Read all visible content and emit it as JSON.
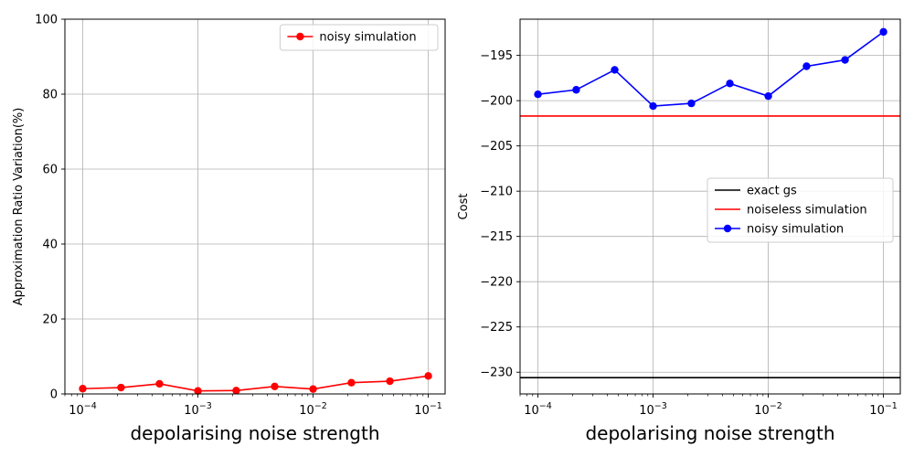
{
  "chart_data": [
    {
      "type": "line",
      "xscale": "log",
      "xlim": [
        7e-05,
        0.14
      ],
      "ylim": [
        0,
        100
      ],
      "xticks": [
        {
          "value": 0.0001,
          "base": "10",
          "exp": "−4"
        },
        {
          "value": 0.001,
          "base": "10",
          "exp": "−3"
        },
        {
          "value": 0.01,
          "base": "10",
          "exp": "−2"
        },
        {
          "value": 0.1,
          "base": "10",
          "exp": "−1"
        }
      ],
      "yticks": [
        0,
        20,
        40,
        60,
        80,
        100
      ],
      "xlabel": "depolarising noise strength",
      "ylabel": "Approximation Ratio Variation(%)",
      "grid": true,
      "legend_position": "top-right",
      "series": [
        {
          "name": "noisy simulation",
          "color": "#ff0000",
          "marker": "circle",
          "x": [
            0.0001,
            0.000215,
            0.000464,
            0.001,
            0.00215,
            0.00464,
            0.01,
            0.0215,
            0.0464,
            0.1
          ],
          "y": [
            1.4,
            1.7,
            2.7,
            0.8,
            0.9,
            2.0,
            1.3,
            3.0,
            3.4,
            4.8
          ]
        }
      ]
    },
    {
      "type": "line",
      "xscale": "log",
      "xlim": [
        7e-05,
        0.14
      ],
      "ylim": [
        -232.4,
        -191.0
      ],
      "xticks": [
        {
          "value": 0.0001,
          "base": "10",
          "exp": "−4"
        },
        {
          "value": 0.001,
          "base": "10",
          "exp": "−3"
        },
        {
          "value": 0.01,
          "base": "10",
          "exp": "−2"
        },
        {
          "value": 0.1,
          "base": "10",
          "exp": "−1"
        }
      ],
      "yticks": [
        -195,
        -200,
        -205,
        -210,
        -215,
        -220,
        -225,
        -230
      ],
      "xlabel": "depolarising noise strength",
      "ylabel": "Cost",
      "grid": true,
      "legend_position": "center-right",
      "hlines": [
        {
          "name": "exact gs",
          "color": "#000000",
          "y": -230.6
        },
        {
          "name": "noiseless simulation",
          "color": "#ff0000",
          "y": -201.7
        }
      ],
      "series": [
        {
          "name": "noisy simulation",
          "color": "#0000ff",
          "marker": "circle",
          "x": [
            0.0001,
            0.000215,
            0.000464,
            0.001,
            0.00215,
            0.00464,
            0.01,
            0.0215,
            0.0464,
            0.1
          ],
          "y": [
            -199.3,
            -198.8,
            -196.6,
            -200.6,
            -200.3,
            -198.1,
            -199.5,
            -196.2,
            -195.5,
            -192.4
          ]
        }
      ]
    }
  ]
}
